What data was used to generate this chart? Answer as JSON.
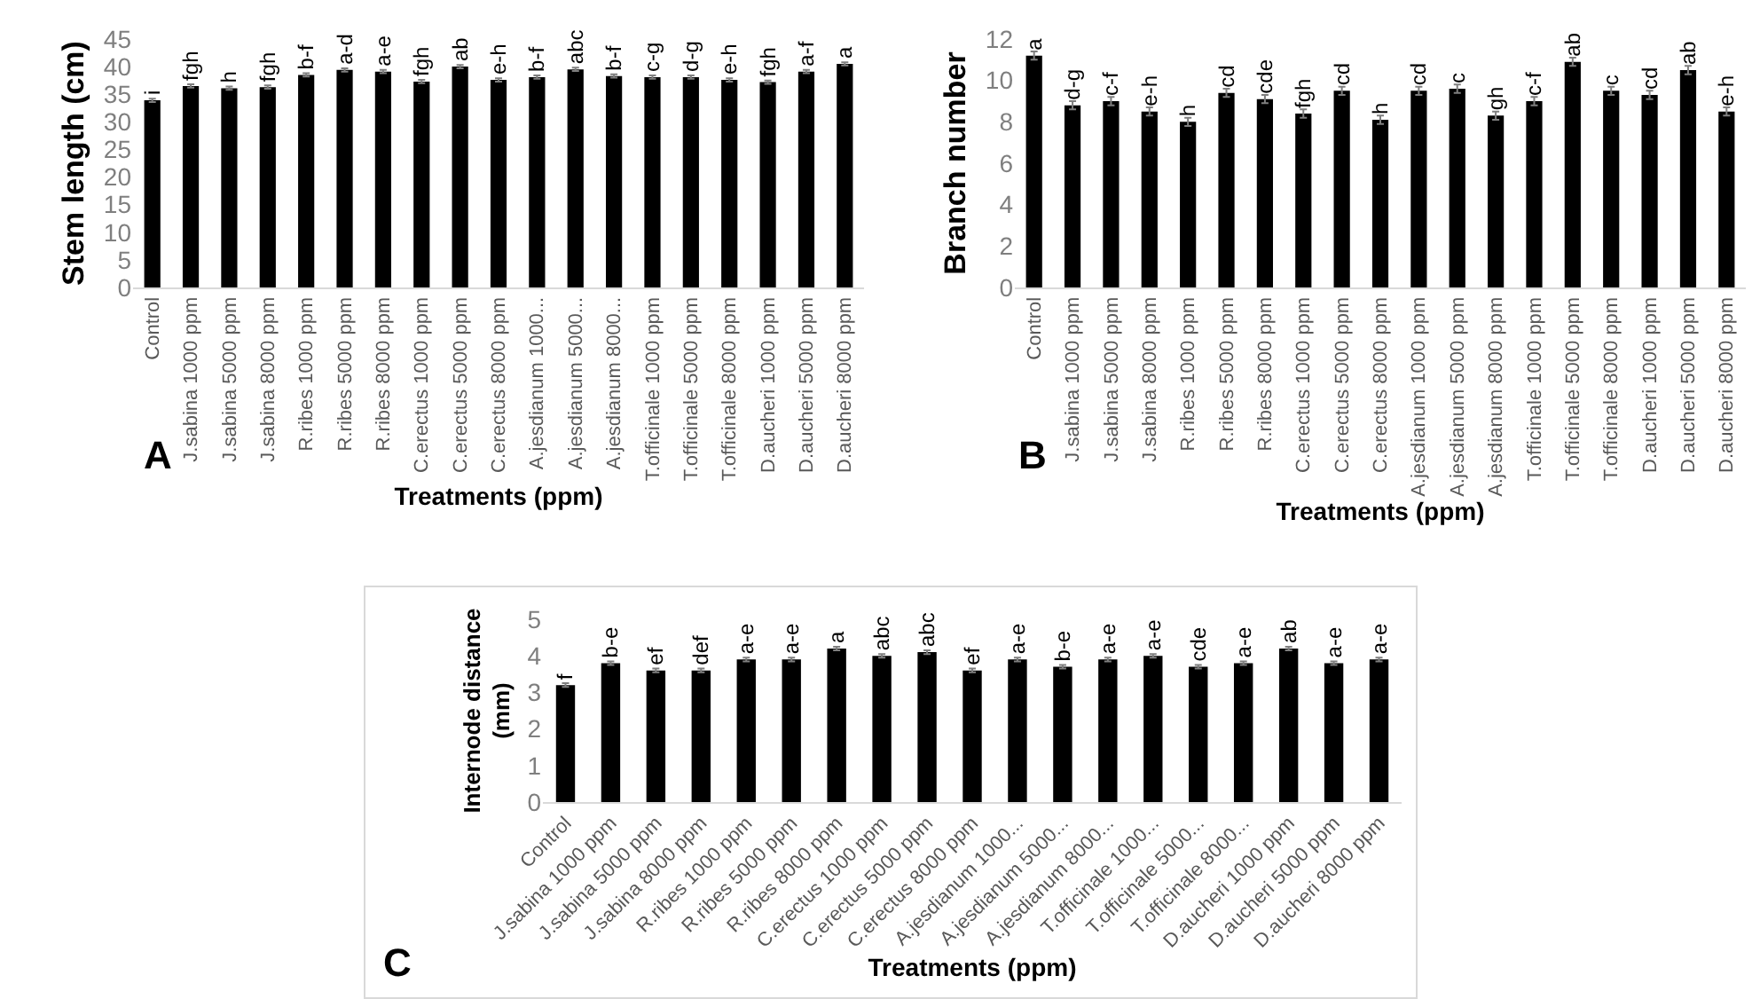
{
  "chart_data": [
    {
      "type": "bar",
      "xlabel": "Treatments (ppm)",
      "ylabel": "Stem length (cm)",
      "annotations": [
        "A"
      ],
      "color": "#000000",
      "categories": [
        "Control",
        "J.sabina 1000 ppm",
        "J.sabina 5000 ppm",
        "J.sabina 8000 ppm",
        "R.ribes 1000 ppm",
        "R.ribes 5000 ppm",
        "R.ribes 8000 ppm",
        "C.erectus 1000 ppm",
        "C.erectus 5000 ppm",
        "C.erectus 8000 ppm",
        "A.jesdianum 1000...",
        "A.jesdianum 5000...",
        "A.jesdianum 8000...",
        "T.officinale 1000 ppm",
        "T.officinale 5000 ppm",
        "T.officinale 8000 ppm",
        "D.aucheri 1000 ppm",
        "D.aucheri 5000 ppm",
        "D.aucheri 8000 ppm"
      ],
      "values": [
        33.9,
        36.5,
        36.1,
        36.3,
        38.5,
        39.4,
        39.1,
        37.3,
        40.0,
        37.6,
        38.1,
        39.5,
        38.3,
        38.1,
        38.1,
        37.6,
        37.2,
        39.1,
        40.5
      ],
      "errors": [
        0.3,
        0.3,
        0.3,
        0.3,
        0.3,
        0.3,
        0.3,
        0.3,
        0.3,
        0.3,
        0.3,
        0.3,
        0.3,
        0.3,
        0.3,
        0.3,
        0.3,
        0.3,
        0.3
      ],
      "value_labels": [
        "i",
        "fgh",
        "h",
        "fgh",
        "b-f",
        "a-d",
        "a-e",
        "fgh",
        "ab",
        "e-h",
        "b-f",
        "abc",
        "b-f",
        "c-g",
        "d-g",
        "e-h",
        "fgh",
        "a-f",
        "a"
      ],
      "ylim": [
        0,
        45
      ],
      "yticks": [
        0,
        5,
        10,
        15,
        20,
        25,
        30,
        35,
        40,
        45
      ]
    },
    {
      "type": "bar",
      "xlabel": "Treatments (ppm)",
      "ylabel": "Branch number",
      "annotations": [
        "B"
      ],
      "color": "#000000",
      "categories": [
        "Control",
        "J.sabina 1000 ppm",
        "J.sabina 5000 ppm",
        "J.sabina 8000 ppm",
        "R.ribes 1000 ppm",
        "R.ribes 5000 ppm",
        "R.ribes 8000 ppm",
        "C.erectus 1000 ppm",
        "C.erectus 5000 ppm",
        "C.erectus 8000 ppm",
        "A.jesdianum 1000 ppm",
        "A.jesdianum 5000 ppm",
        "A.jesdianum 8000 ppm",
        "T.officinale 1000 ppm",
        "T.officinale 5000 ppm",
        "T.officinale 8000 ppm",
        "D.aucheri 1000 ppm",
        "D.aucheri 5000 ppm",
        "D.aucheri 8000 ppm"
      ],
      "values": [
        11.2,
        8.8,
        9.0,
        8.5,
        8.0,
        9.4,
        9.1,
        8.4,
        9.5,
        8.1,
        9.5,
        9.6,
        8.3,
        9.0,
        10.9,
        9.5,
        9.3,
        10.5,
        8.5
      ],
      "errors": [
        0.2,
        0.2,
        0.2,
        0.2,
        0.2,
        0.2,
        0.2,
        0.2,
        0.2,
        0.2,
        0.2,
        0.2,
        0.2,
        0.2,
        0.2,
        0.2,
        0.2,
        0.2,
        0.2
      ],
      "value_labels": [
        "a",
        "d-g",
        "c-f",
        "e-h",
        "h",
        "cd",
        "cde",
        "fgh",
        "cd",
        "h",
        "cd",
        "c",
        "gh",
        "c-f",
        "ab",
        "c",
        "cd",
        "ab",
        "e-h"
      ],
      "ylim": [
        0,
        12
      ],
      "yticks": [
        0,
        2,
        4,
        6,
        8,
        10,
        12
      ]
    },
    {
      "type": "bar",
      "xlabel": "Treatments (ppm)",
      "ylabel": "Internode distance (mm)",
      "annotations": [
        "C"
      ],
      "color": "#000000",
      "categories": [
        "Control",
        "J.sabina 1000 ppm",
        "J.sabina 5000 ppm",
        "J.sabina 8000 ppm",
        "R.ribes 1000 ppm",
        "R.ribes 5000 ppm",
        "R.ribes 8000 ppm",
        "C.erectus 1000 ppm",
        "C.erectus 5000 ppm",
        "C.erectus 8000 ppm",
        "A.jesdianum 1000...",
        "A.jesdianum 5000...",
        "A.jesdianum 8000...",
        "T.officinale 1000...",
        "T.officinale 5000...",
        "T.officinale 8000...",
        "D.aucheri 1000 ppm",
        "D.aucheri 5000 ppm",
        "D.aucheri 8000 ppm"
      ],
      "values": [
        3.2,
        3.8,
        3.6,
        3.6,
        3.9,
        3.9,
        4.2,
        4.0,
        4.1,
        3.6,
        3.9,
        3.7,
        3.9,
        4.0,
        3.7,
        3.8,
        4.2,
        3.8,
        3.9
      ],
      "errors": [
        0.05,
        0.05,
        0.05,
        0.05,
        0.05,
        0.05,
        0.05,
        0.05,
        0.05,
        0.05,
        0.05,
        0.05,
        0.05,
        0.05,
        0.05,
        0.05,
        0.05,
        0.05,
        0.05
      ],
      "value_labels": [
        "f",
        "b-e",
        "ef",
        "def",
        "a-e",
        "a-e",
        "a",
        "abc",
        "abc",
        "ef",
        "a-e",
        "b-e",
        "a-e",
        "a-e",
        "cde",
        "a-e",
        "ab",
        "a-e",
        "a-e"
      ],
      "ylim": [
        0,
        5
      ],
      "yticks": [
        0,
        1,
        2,
        3,
        4,
        5
      ]
    }
  ]
}
